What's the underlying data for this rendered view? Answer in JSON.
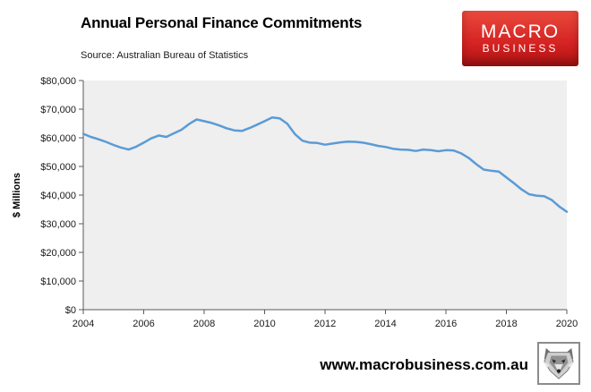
{
  "header": {
    "title": "Annual Personal Finance Commitments",
    "source": "Source: Australian Bureau of Statistics"
  },
  "logo": {
    "line1": "MACRO",
    "line2": "BUSINESS",
    "bg_top": "#ea4a3d",
    "bg_mid": "#d42222",
    "bg_bottom": "#b01313"
  },
  "footer": {
    "website": "www.macrobusiness.com.au"
  },
  "chart_data": {
    "type": "line",
    "title": "Annual Personal Finance Commitments",
    "xlabel": "",
    "ylabel": "$ Millions",
    "line_color": "#5b9bd5",
    "plot_bg": "#efefef",
    "axis_color": "#595959",
    "grid": false,
    "legend": "none",
    "xlim": [
      2004,
      2020
    ],
    "ylim": [
      0,
      80000
    ],
    "x_ticks": [
      2004,
      2006,
      2008,
      2010,
      2012,
      2014,
      2016,
      2018,
      2020
    ],
    "y_tick_labels": [
      "$0",
      "$10,000",
      "$20,000",
      "$30,000",
      "$40,000",
      "$50,000",
      "$60,000",
      "$70,000",
      "$80,000"
    ],
    "y_tick_values": [
      0,
      10000,
      20000,
      30000,
      40000,
      50000,
      60000,
      70000,
      80000
    ],
    "series": [
      {
        "name": "Annual Personal Finance Commitments",
        "x": [
          2004.0,
          2004.25,
          2004.5,
          2004.75,
          2005.0,
          2005.25,
          2005.5,
          2005.75,
          2006.0,
          2006.25,
          2006.5,
          2006.75,
          2007.0,
          2007.25,
          2007.5,
          2007.75,
          2008.0,
          2008.25,
          2008.5,
          2008.75,
          2009.0,
          2009.25,
          2009.5,
          2009.75,
          2010.0,
          2010.25,
          2010.5,
          2010.75,
          2011.0,
          2011.25,
          2011.5,
          2011.75,
          2012.0,
          2012.25,
          2012.5,
          2012.75,
          2013.0,
          2013.25,
          2013.5,
          2013.75,
          2014.0,
          2014.25,
          2014.5,
          2014.75,
          2015.0,
          2015.25,
          2015.5,
          2015.75,
          2016.0,
          2016.25,
          2016.5,
          2016.75,
          2017.0,
          2017.25,
          2017.5,
          2017.75,
          2018.0,
          2018.25,
          2018.5,
          2018.75,
          2019.0,
          2019.25,
          2019.5,
          2019.75,
          2020.0
        ],
        "values": [
          61400,
          60300,
          59500,
          58600,
          57500,
          56600,
          55900,
          56900,
          58300,
          59800,
          60800,
          60300,
          61600,
          62800,
          64800,
          66400,
          65800,
          65200,
          64300,
          63300,
          62600,
          62400,
          63400,
          64600,
          65800,
          67100,
          66800,
          64900,
          61300,
          59000,
          58300,
          58200,
          57600,
          58000,
          58400,
          58700,
          58600,
          58300,
          57800,
          57200,
          56800,
          56200,
          55900,
          55800,
          55400,
          55900,
          55700,
          55300,
          55700,
          55600,
          54600,
          53000,
          50800,
          48900,
          48500,
          48200,
          46200,
          44200,
          42000,
          40300,
          39800,
          39600,
          38300,
          36000,
          34200
        ]
      }
    ]
  }
}
